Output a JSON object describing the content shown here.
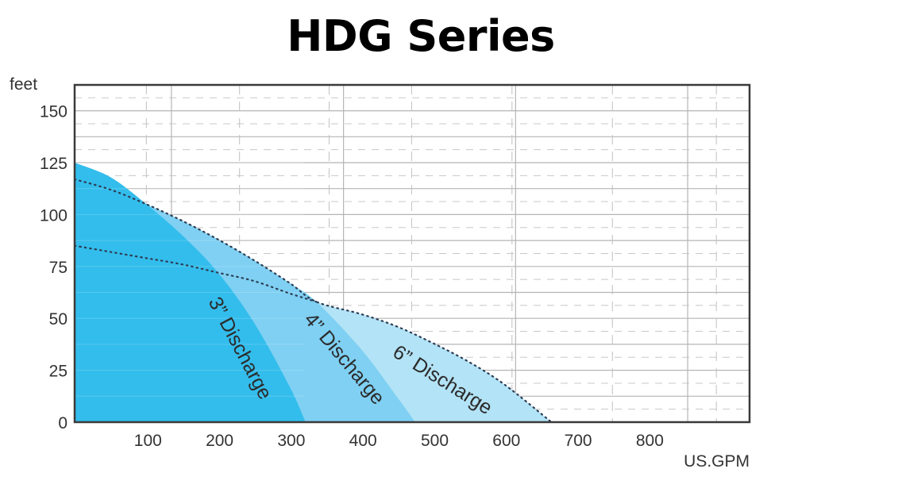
{
  "title": "HDG Series",
  "axes": {
    "y_unit": "feet",
    "x_unit": "US.GPM",
    "y_ticks": [
      "0",
      "25",
      "50",
      "75",
      "100",
      "125",
      "150"
    ],
    "x_ticks": [
      "100",
      "200",
      "300",
      "400",
      "500",
      "600",
      "700",
      "800"
    ]
  },
  "labels": {
    "d3": "3” Discharge",
    "d4": "4” Discharge",
    "d6": "6” Discharge"
  },
  "colors": {
    "d3": "#33bdec",
    "d4": "#7fd0f3",
    "d6": "#b3e3f6",
    "frame": "#3a3a3a",
    "grid": "#b5b5b5"
  },
  "chart_data": {
    "type": "area",
    "title": "HDG Series",
    "xlabel": "US.GPM",
    "ylabel": "feet",
    "xlim": [
      0,
      940
    ],
    "ylim": [
      0,
      162
    ],
    "x_ticks": [
      100,
      200,
      300,
      400,
      500,
      600,
      700,
      800
    ],
    "y_ticks": [
      0,
      25,
      50,
      75,
      100,
      125,
      150
    ],
    "grid": true,
    "series": [
      {
        "name": "3” Discharge",
        "x": [
          0,
          50,
          100,
          150,
          200,
          250,
          300,
          322
        ],
        "y": [
          125,
          118,
          105,
          90,
          72,
          48,
          17,
          0
        ]
      },
      {
        "name": "4” Discharge",
        "x": [
          0,
          50,
          100,
          150,
          200,
          250,
          300,
          337,
          400,
          450,
          475
        ],
        "y": [
          117,
          112,
          105,
          97,
          88,
          78,
          67,
          58,
          35,
          12,
          0
        ]
      },
      {
        "name": "6” Discharge",
        "x": [
          0,
          50,
          100,
          150,
          200,
          250,
          300,
          337,
          400,
          450,
          500,
          550,
          600,
          665
        ],
        "y": [
          117,
          112,
          105,
          97,
          88,
          78,
          67,
          58,
          52,
          46,
          38,
          29,
          18,
          0
        ]
      },
      {
        "name": "Lower dotted curve",
        "x": [
          0,
          50,
          100,
          150,
          200,
          250,
          300,
          337
        ],
        "y": [
          85,
          82,
          79,
          76,
          72,
          68,
          62,
          58
        ]
      }
    ]
  }
}
